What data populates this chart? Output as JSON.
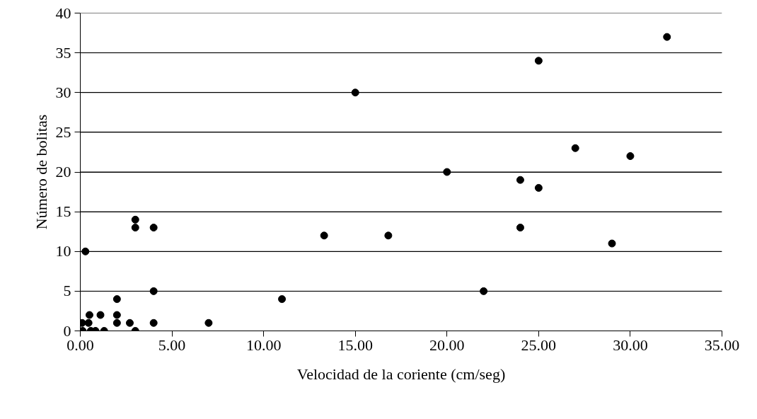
{
  "chart_data": {
    "type": "scatter",
    "xlabel": "Velocidad de la coriente (cm/seg)",
    "ylabel": "Número de bolitas",
    "x": [
      0.1,
      0.45,
      0.5,
      0.13,
      0.57,
      0.83,
      1.3,
      1.1,
      2,
      2,
      2,
      2.7,
      3,
      3,
      3,
      4,
      4,
      4,
      7,
      0.28,
      11,
      13.3,
      16.8,
      15,
      20,
      22,
      32,
      25,
      27,
      30,
      24,
      25,
      24,
      29
    ],
    "values": [
      1,
      1,
      2,
      0,
      0,
      0,
      0,
      2,
      4,
      2,
      1,
      1,
      0,
      14,
      13,
      13,
      5,
      1,
      1,
      10,
      4,
      12,
      12,
      30,
      20,
      5,
      37,
      34,
      23,
      22,
      19,
      18,
      13,
      11
    ],
    "color": "#000000",
    "marker": "circle",
    "xlim": [
      0,
      35
    ],
    "ylim": [
      0,
      40
    ],
    "xticks": [
      {
        "value": 0,
        "label": "0.00"
      },
      {
        "value": 5,
        "label": "5.00"
      },
      {
        "value": 10,
        "label": "10.00"
      },
      {
        "value": 15,
        "label": "15.00"
      },
      {
        "value": 20,
        "label": "20.00"
      },
      {
        "value": 25,
        "label": "25.00"
      },
      {
        "value": 30,
        "label": "30.00"
      },
      {
        "value": 35,
        "label": "35.00"
      }
    ],
    "yticks": [
      0,
      5,
      10,
      15,
      20,
      25,
      30,
      35,
      40
    ],
    "grid": "y"
  }
}
